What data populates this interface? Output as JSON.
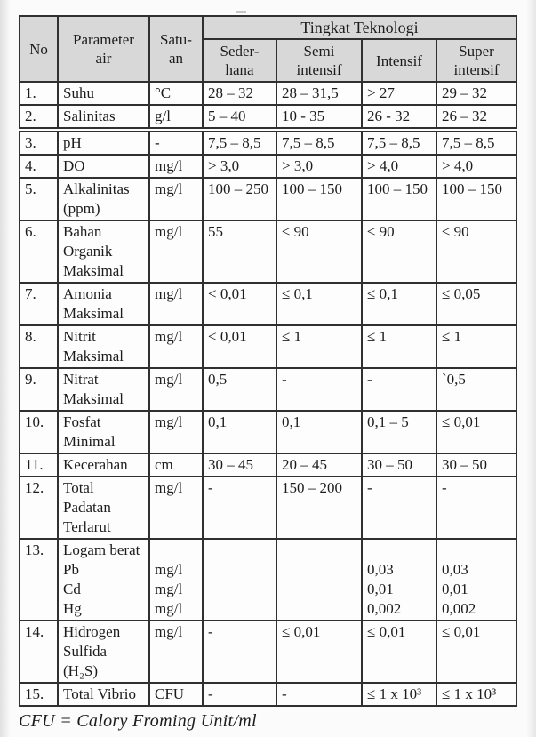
{
  "document": {
    "footnote": "CFU = Calory Froming Unit/ml",
    "colors": {
      "header_bg": "#d8d8d8",
      "border": "#303030",
      "text": "#1c1c1c",
      "page_bg": "#fbfbfb"
    }
  },
  "table": {
    "headers": {
      "no": "No",
      "parameter": "Parameter\nair",
      "unit": "Satu-\nan",
      "group": "Tingkat Teknologi",
      "levels": [
        "Seder-\nhana",
        "Semi\nintensif",
        "Intensif",
        "Super\nintensif"
      ]
    },
    "rows": [
      {
        "no": "1.",
        "parameter": "Suhu",
        "unit": "°C",
        "values": [
          "28 – 32",
          "28 – 31,5",
          "> 27",
          "29 – 32"
        ]
      },
      {
        "no": "2.",
        "parameter": "Salinitas",
        "unit": "g/l",
        "values": [
          "5 – 40",
          "10 - 35",
          "26 - 32",
          "26 – 32"
        ]
      },
      {
        "no": "3.",
        "parameter": "pH",
        "unit": "-",
        "values": [
          "7,5 – 8,5",
          "7,5 – 8,5",
          "7,5 – 8,5",
          "7,5 – 8,5"
        ]
      },
      {
        "no": "4.",
        "parameter": "DO",
        "unit": "mg/l",
        "values": [
          "> 3,0",
          "> 3,0",
          "> 4,0",
          "> 4,0"
        ]
      },
      {
        "no": "5.",
        "parameter": "Alkalinitas\n(ppm)",
        "unit": "mg/l",
        "values": [
          "100 – 250",
          "100 – 150",
          "100 – 150",
          "100 – 150"
        ]
      },
      {
        "no": "6.",
        "parameter": "Bahan\nOrganik\nMaksimal",
        "unit": "mg/l",
        "values": [
          "55",
          "≤ 90",
          "≤ 90",
          "≤ 90"
        ]
      },
      {
        "no": "7.",
        "parameter": "Amonia\nMaksimal",
        "unit": "mg/l",
        "values": [
          "< 0,01",
          "≤ 0,1",
          "≤ 0,1",
          "≤ 0,05"
        ]
      },
      {
        "no": "8.",
        "parameter": "Nitrit\nMaksimal",
        "unit": "mg/l",
        "values": [
          "< 0,01",
          "≤ 1",
          "≤ 1",
          "≤ 1"
        ]
      },
      {
        "no": "9.",
        "parameter": "Nitrat\nMaksimal",
        "unit": "mg/l",
        "values": [
          "0,5",
          "-",
          "-",
          "`0,5"
        ]
      },
      {
        "no": "10.",
        "parameter": "Fosfat\nMinimal",
        "unit": "mg/l",
        "values": [
          "0,1",
          "0,1",
          "0,1 – 5",
          "≤ 0,01"
        ]
      },
      {
        "no": "11.",
        "parameter": "Kecerahan",
        "unit": "cm",
        "values": [
          "30 – 45",
          "20 – 45",
          "30 – 50",
          "30 – 50"
        ]
      },
      {
        "no": "12.",
        "parameter": "Total\nPadatan\nTerlarut",
        "unit": "mg/l",
        "values": [
          "-",
          "150 – 200",
          "-",
          "-"
        ]
      },
      {
        "no": "13.",
        "parameter": "Logam berat\nPb\nCd\nHg",
        "unit": "\nmg/l\nmg/l\nmg/l",
        "values": [
          "",
          "",
          "\n0,03\n0,01\n0,002",
          "\n0,03\n0,01\n0,002"
        ]
      },
      {
        "no": "14.",
        "parameter": "Hidrogen\nSulfida\n(H₂S)",
        "unit": "mg/l",
        "values": [
          "-",
          "≤ 0,01",
          "≤ 0,01",
          "≤ 0,01"
        ]
      },
      {
        "no": "15.",
        "parameter": "Total Vibrio",
        "unit": "CFU",
        "values": [
          "-",
          "-",
          "≤ 1 x 10³",
          "≤ 1 x 10³"
        ]
      }
    ]
  }
}
